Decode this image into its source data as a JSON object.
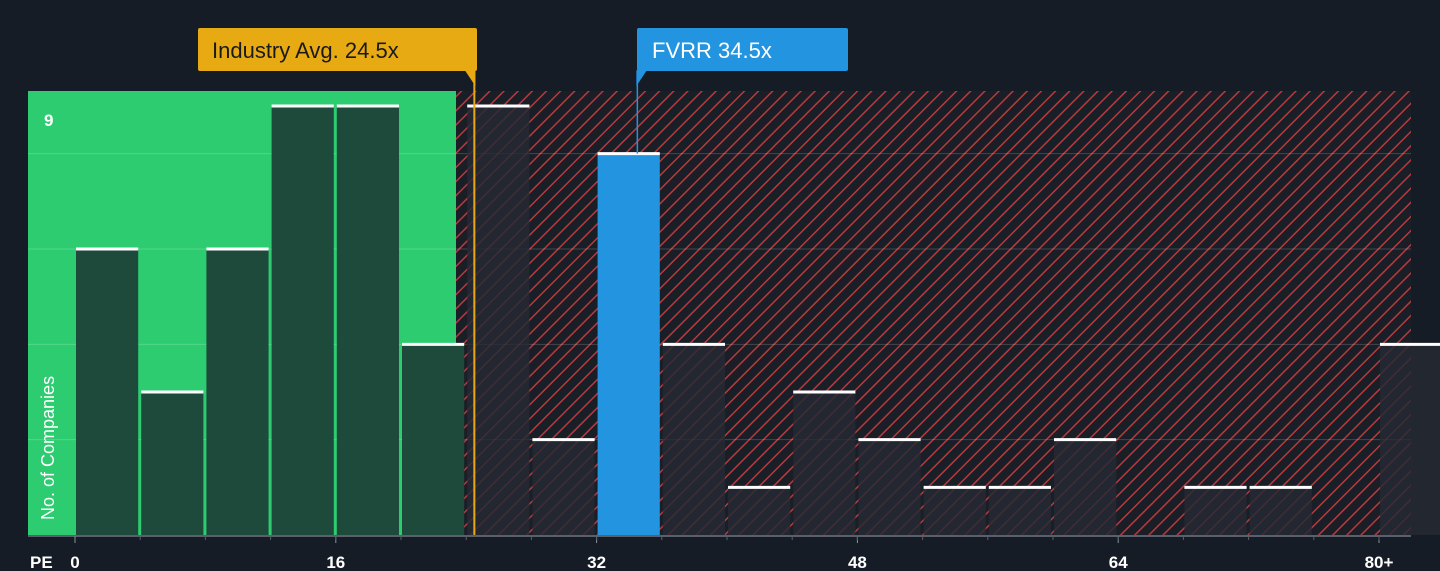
{
  "chart_data": {
    "type": "bar",
    "xlabel": "PE",
    "ylabel": "No. of Companies",
    "x_ticks": [
      {
        "value": 0,
        "label": "0"
      },
      {
        "value": 16,
        "label": "16"
      },
      {
        "value": 32,
        "label": "32"
      },
      {
        "value": 48,
        "label": "48"
      },
      {
        "value": 64,
        "label": "64"
      },
      {
        "value": 80,
        "label": "80+"
      }
    ],
    "y_tick_labels": [
      {
        "value": 9,
        "label": "9"
      }
    ],
    "ylim": [
      0,
      9.3
    ],
    "xlim": [
      -3,
      82
    ],
    "bin_width": 4,
    "bins": [
      {
        "start": 0,
        "count": 6
      },
      {
        "start": 4,
        "count": 3
      },
      {
        "start": 8,
        "count": 6
      },
      {
        "start": 12,
        "count": 9
      },
      {
        "start": 16,
        "count": 9
      },
      {
        "start": 20,
        "count": 4
      },
      {
        "start": 24,
        "count": 9
      },
      {
        "start": 28,
        "count": 2
      },
      {
        "start": 32,
        "count": 8,
        "highlight": true
      },
      {
        "start": 36,
        "count": 4
      },
      {
        "start": 40,
        "count": 1
      },
      {
        "start": 44,
        "count": 3
      },
      {
        "start": 48,
        "count": 2
      },
      {
        "start": 52,
        "count": 1
      },
      {
        "start": 56,
        "count": 1
      },
      {
        "start": 60,
        "count": 2
      },
      {
        "start": 64,
        "count": 0
      },
      {
        "start": 68,
        "count": 1
      },
      {
        "start": 72,
        "count": 1
      },
      {
        "start": 76,
        "count": 0
      },
      {
        "start": 80,
        "count": 4
      }
    ],
    "industry_avg": {
      "value": 24.5,
      "label": "Industry Avg. 24.5x"
    },
    "company": {
      "value": 34.5,
      "label": "FVRR 34.5x"
    },
    "grid": true,
    "colors": {
      "background": "#161c25",
      "fair_zone": "#2ecc71",
      "bar_dark": "#1d4a3a",
      "bar_overvalued": "#262a33",
      "hatch": "#b83a3c",
      "highlight": "#2394e0",
      "industry_callout": "#e8aa12",
      "bar_top": "#ffffff"
    }
  }
}
